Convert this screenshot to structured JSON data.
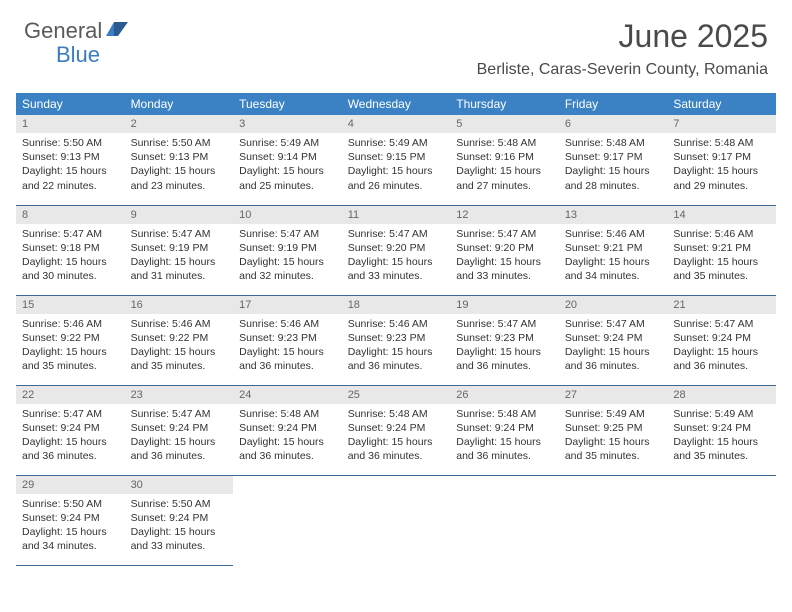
{
  "logo": {
    "text1": "General",
    "text2": "Blue"
  },
  "title": "June 2025",
  "location": "Berliste, Caras-Severin County, Romania",
  "colors": {
    "header_bg": "#3b82c4",
    "header_text": "#ffffff",
    "daynum_bg": "#e8e8e8",
    "daynum_text": "#666666",
    "border": "#3b6a9a",
    "logo_gray": "#5a5a5a",
    "logo_blue": "#3b7bbf"
  },
  "weekdays": [
    "Sunday",
    "Monday",
    "Tuesday",
    "Wednesday",
    "Thursday",
    "Friday",
    "Saturday"
  ],
  "days": [
    {
      "n": "1",
      "sunrise": "5:50 AM",
      "sunset": "9:13 PM",
      "dayh": "15",
      "daym": "22"
    },
    {
      "n": "2",
      "sunrise": "5:50 AM",
      "sunset": "9:13 PM",
      "dayh": "15",
      "daym": "23"
    },
    {
      "n": "3",
      "sunrise": "5:49 AM",
      "sunset": "9:14 PM",
      "dayh": "15",
      "daym": "25"
    },
    {
      "n": "4",
      "sunrise": "5:49 AM",
      "sunset": "9:15 PM",
      "dayh": "15",
      "daym": "26"
    },
    {
      "n": "5",
      "sunrise": "5:48 AM",
      "sunset": "9:16 PM",
      "dayh": "15",
      "daym": "27"
    },
    {
      "n": "6",
      "sunrise": "5:48 AM",
      "sunset": "9:17 PM",
      "dayh": "15",
      "daym": "28"
    },
    {
      "n": "7",
      "sunrise": "5:48 AM",
      "sunset": "9:17 PM",
      "dayh": "15",
      "daym": "29"
    },
    {
      "n": "8",
      "sunrise": "5:47 AM",
      "sunset": "9:18 PM",
      "dayh": "15",
      "daym": "30"
    },
    {
      "n": "9",
      "sunrise": "5:47 AM",
      "sunset": "9:19 PM",
      "dayh": "15",
      "daym": "31"
    },
    {
      "n": "10",
      "sunrise": "5:47 AM",
      "sunset": "9:19 PM",
      "dayh": "15",
      "daym": "32"
    },
    {
      "n": "11",
      "sunrise": "5:47 AM",
      "sunset": "9:20 PM",
      "dayh": "15",
      "daym": "33"
    },
    {
      "n": "12",
      "sunrise": "5:47 AM",
      "sunset": "9:20 PM",
      "dayh": "15",
      "daym": "33"
    },
    {
      "n": "13",
      "sunrise": "5:46 AM",
      "sunset": "9:21 PM",
      "dayh": "15",
      "daym": "34"
    },
    {
      "n": "14",
      "sunrise": "5:46 AM",
      "sunset": "9:21 PM",
      "dayh": "15",
      "daym": "35"
    },
    {
      "n": "15",
      "sunrise": "5:46 AM",
      "sunset": "9:22 PM",
      "dayh": "15",
      "daym": "35"
    },
    {
      "n": "16",
      "sunrise": "5:46 AM",
      "sunset": "9:22 PM",
      "dayh": "15",
      "daym": "35"
    },
    {
      "n": "17",
      "sunrise": "5:46 AM",
      "sunset": "9:23 PM",
      "dayh": "15",
      "daym": "36"
    },
    {
      "n": "18",
      "sunrise": "5:46 AM",
      "sunset": "9:23 PM",
      "dayh": "15",
      "daym": "36"
    },
    {
      "n": "19",
      "sunrise": "5:47 AM",
      "sunset": "9:23 PM",
      "dayh": "15",
      "daym": "36"
    },
    {
      "n": "20",
      "sunrise": "5:47 AM",
      "sunset": "9:24 PM",
      "dayh": "15",
      "daym": "36"
    },
    {
      "n": "21",
      "sunrise": "5:47 AM",
      "sunset": "9:24 PM",
      "dayh": "15",
      "daym": "36"
    },
    {
      "n": "22",
      "sunrise": "5:47 AM",
      "sunset": "9:24 PM",
      "dayh": "15",
      "daym": "36"
    },
    {
      "n": "23",
      "sunrise": "5:47 AM",
      "sunset": "9:24 PM",
      "dayh": "15",
      "daym": "36"
    },
    {
      "n": "24",
      "sunrise": "5:48 AM",
      "sunset": "9:24 PM",
      "dayh": "15",
      "daym": "36"
    },
    {
      "n": "25",
      "sunrise": "5:48 AM",
      "sunset": "9:24 PM",
      "dayh": "15",
      "daym": "36"
    },
    {
      "n": "26",
      "sunrise": "5:48 AM",
      "sunset": "9:24 PM",
      "dayh": "15",
      "daym": "36"
    },
    {
      "n": "27",
      "sunrise": "5:49 AM",
      "sunset": "9:25 PM",
      "dayh": "15",
      "daym": "35"
    },
    {
      "n": "28",
      "sunrise": "5:49 AM",
      "sunset": "9:24 PM",
      "dayh": "15",
      "daym": "35"
    },
    {
      "n": "29",
      "sunrise": "5:50 AM",
      "sunset": "9:24 PM",
      "dayh": "15",
      "daym": "34"
    },
    {
      "n": "30",
      "sunrise": "5:50 AM",
      "sunset": "9:24 PM",
      "dayh": "15",
      "daym": "33"
    }
  ],
  "labels": {
    "sunrise": "Sunrise:",
    "sunset": "Sunset:",
    "daylight_pre": "Daylight:",
    "hours_word": "hours",
    "and_word": "and",
    "minutes_word": "minutes."
  }
}
